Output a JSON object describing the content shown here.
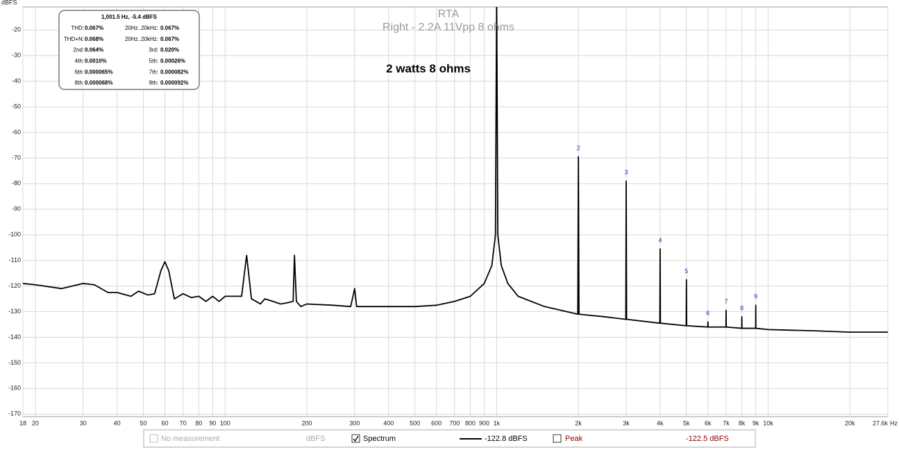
{
  "chart_data": {
    "type": "line",
    "title": "RTA",
    "subtitle": "Right - 2.2A 11Vpp 8 ohms",
    "annotation": "2 watts 8 ohms",
    "y_label": "dBFS",
    "x_label": "Hz",
    "log_x": true,
    "grid": true,
    "xlim": [
      18,
      27600
    ],
    "ylim": [
      -171,
      -11
    ],
    "xticks": [
      18,
      20,
      30,
      40,
      50,
      60,
      70,
      80,
      90,
      100,
      200,
      300,
      400,
      500,
      600,
      700,
      800,
      900,
      {
        "value": 1000,
        "label": "1k"
      },
      {
        "value": 2000,
        "label": "2k"
      },
      {
        "value": 3000,
        "label": "3k"
      },
      {
        "value": 4000,
        "label": "4k"
      },
      {
        "value": 5000,
        "label": "5k"
      },
      {
        "value": 6000,
        "label": "6k"
      },
      {
        "value": 7000,
        "label": "7k"
      },
      {
        "value": 8000,
        "label": "8k"
      },
      {
        "value": 9000,
        "label": "9k"
      },
      {
        "value": 10000,
        "label": "10k"
      },
      {
        "value": 20000,
        "label": "20k"
      },
      {
        "value": 27600,
        "label": "27.6k"
      }
    ],
    "yticks": [
      -20,
      -30,
      -40,
      -50,
      -60,
      -70,
      -80,
      -90,
      -100,
      -110,
      -120,
      -130,
      -140,
      -150,
      -160,
      -170
    ],
    "series": [
      {
        "name": "Spectrum",
        "color": "#000000",
        "x": [
          18,
          20,
          25,
          30,
          33,
          37,
          40,
          45,
          48,
          52,
          55,
          58,
          60,
          62,
          65,
          70,
          75,
          80,
          85,
          90,
          95,
          100,
          110,
          115,
          120,
          125,
          135,
          140,
          150,
          160,
          170,
          178,
          180,
          183,
          190,
          200,
          250,
          290,
          300,
          305,
          400,
          500,
          600,
          700,
          800,
          900,
          960,
          990,
          1000,
          1010,
          1040,
          1100,
          1200,
          1500,
          1900,
          1990,
          2000,
          2010,
          2500,
          2990,
          3000,
          3010,
          3990,
          4000,
          4010,
          4990,
          5000,
          5010,
          5990,
          6000,
          6010,
          6990,
          7000,
          7010,
          7990,
          8000,
          8010,
          8990,
          9000,
          9010,
          10000,
          15000,
          20000,
          27600
        ],
        "values": [
          -119,
          -119.5,
          -121,
          -119,
          -119.5,
          -122.5,
          -122.5,
          -124,
          -122,
          -123.5,
          -123,
          -114,
          -110.5,
          -114,
          -125,
          -123,
          -124.5,
          -124,
          -126,
          -124,
          -126,
          -124,
          -124,
          -124,
          -108,
          -125,
          -127,
          -125,
          -126,
          -127,
          -126.5,
          -126,
          -108,
          -126,
          -128,
          -127,
          -127.5,
          -128,
          -121,
          -128,
          -128,
          -128,
          -127.5,
          -126,
          -124,
          -119,
          -112,
          -100,
          -5.4,
          -100,
          -112,
          -119,
          -124,
          -128,
          -130.5,
          -131,
          -69.5,
          -131,
          -132,
          -133,
          -79,
          -133,
          -134.5,
          -105.5,
          -134.5,
          -135.5,
          -117.5,
          -135.5,
          -136,
          -134,
          -136,
          -136,
          -129.5,
          -136,
          -136.5,
          -132,
          -136.5,
          -136.5,
          -127.5,
          -136.5,
          -137,
          -137.5,
          -138,
          -138
        ]
      }
    ],
    "harmonic_labels": [
      {
        "label": "2",
        "x": 2000,
        "y": -69.5
      },
      {
        "label": "3",
        "x": 3000,
        "y": -79
      },
      {
        "label": "4",
        "x": 4000,
        "y": -105.5
      },
      {
        "label": "5",
        "x": 5000,
        "y": -117.5
      },
      {
        "label": "6",
        "x": 6000,
        "y": -134
      },
      {
        "label": "7",
        "x": 7000,
        "y": -129.5
      },
      {
        "label": "8",
        "x": 8000,
        "y": -132
      },
      {
        "label": "9",
        "x": 9000,
        "y": -127.5
      }
    ],
    "harmonic_color": "#2b2bb8"
  },
  "info_box": {
    "header": "1,001.5 Hz, -5.4 dBFS",
    "rows": [
      [
        "THD:",
        "0.067%",
        "20Hz..20kHz:",
        "0.067%"
      ],
      [
        "THD+N:",
        "0.068%",
        "20Hz..20kHz:",
        "0.067%"
      ],
      [
        "2nd:",
        "0.064%",
        "3rd:",
        "0.020%"
      ],
      [
        "4th:",
        "0.0010%",
        "5th:",
        "0.00026%"
      ],
      [
        "6th:",
        "0.000065%",
        "7th:",
        "0.000082%"
      ],
      [
        "8th:",
        "0.000068%",
        "9th:",
        "0.000092%"
      ]
    ]
  },
  "footer": {
    "no_measurement": "No measurement",
    "no_measurement_checked": false,
    "no_measurement_unit": "dBFS",
    "spectrum_checked": true,
    "spectrum_value": "-122.8 dBFS",
    "peak": "Peak",
    "peak_checked": false,
    "peak_value": "-122.5 dBFS"
  }
}
